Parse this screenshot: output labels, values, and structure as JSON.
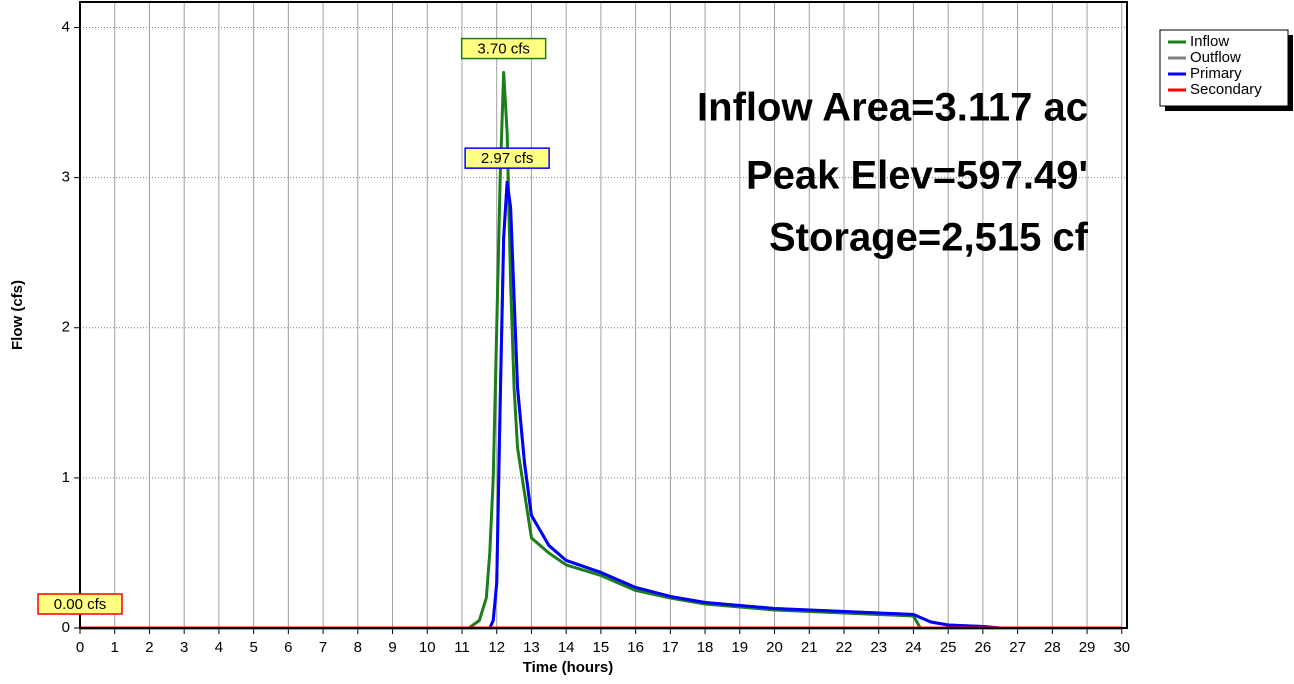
{
  "chart_data": {
    "type": "line",
    "xlabel": "Time  (hours)",
    "ylabel": "Flow  (cfs)",
    "xlim": [
      0,
      30.15
    ],
    "ylim": [
      0,
      4.17
    ],
    "xticks": [
      0,
      1,
      2,
      3,
      4,
      5,
      6,
      7,
      8,
      9,
      10,
      11,
      12,
      13,
      14,
      15,
      16,
      17,
      18,
      19,
      20,
      21,
      22,
      23,
      24,
      25,
      26,
      27,
      28,
      29,
      30
    ],
    "yticks": [
      0,
      1,
      2,
      3,
      4
    ],
    "grid": true,
    "legend": "top-right",
    "series": [
      {
        "name": "Inflow",
        "color": "#1a7f1a",
        "x": [
          0,
          11.2,
          11.5,
          11.7,
          11.8,
          11.9,
          12.0,
          12.1,
          12.2,
          12.3,
          12.4,
          12.5,
          12.6,
          12.8,
          13.0,
          13.5,
          14,
          15,
          16,
          17,
          18,
          19,
          20,
          21,
          22,
          23,
          24,
          24.2,
          30
        ],
        "values": [
          0,
          0,
          0.05,
          0.2,
          0.5,
          1.0,
          2.0,
          3.0,
          3.7,
          3.3,
          2.3,
          1.6,
          1.2,
          0.9,
          0.6,
          0.5,
          0.42,
          0.35,
          0.25,
          0.2,
          0.16,
          0.14,
          0.12,
          0.11,
          0.1,
          0.09,
          0.08,
          0,
          0
        ]
      },
      {
        "name": "Outflow",
        "color": "#808080",
        "x": [
          0,
          11.8,
          11.9,
          12.0,
          12.1,
          12.2,
          12.3,
          12.4,
          12.5,
          12.6,
          12.8,
          13.0,
          13.5,
          14,
          15,
          16,
          17,
          18,
          19,
          20,
          21,
          22,
          23,
          24,
          24.5,
          25,
          26,
          26.5,
          30
        ],
        "values": [
          0,
          0,
          0.05,
          0.3,
          1.5,
          2.6,
          2.97,
          2.8,
          2.2,
          1.6,
          1.1,
          0.75,
          0.55,
          0.45,
          0.37,
          0.27,
          0.21,
          0.17,
          0.15,
          0.13,
          0.12,
          0.11,
          0.1,
          0.09,
          0.04,
          0.02,
          0.01,
          0,
          0
        ]
      },
      {
        "name": "Primary",
        "color": "#0000ff",
        "x": [
          0,
          11.8,
          11.9,
          12.0,
          12.1,
          12.2,
          12.3,
          12.4,
          12.5,
          12.6,
          12.8,
          13.0,
          13.5,
          14,
          15,
          16,
          17,
          18,
          19,
          20,
          21,
          22,
          23,
          24,
          24.5,
          25,
          26,
          26.5,
          30
        ],
        "values": [
          0,
          0,
          0.05,
          0.3,
          1.5,
          2.6,
          2.97,
          2.8,
          2.2,
          1.6,
          1.1,
          0.75,
          0.55,
          0.45,
          0.37,
          0.27,
          0.21,
          0.17,
          0.15,
          0.13,
          0.12,
          0.11,
          0.1,
          0.09,
          0.04,
          0.02,
          0.01,
          0,
          0
        ]
      },
      {
        "name": "Secondary",
        "color": "#ff0000",
        "x": [
          0,
          30
        ],
        "values": [
          0,
          0
        ]
      }
    ],
    "annotations": [
      {
        "text": "3.70 cfs",
        "x": 12.2,
        "y": 3.7,
        "color": "#1a7f1a"
      },
      {
        "text": "2.97 cfs",
        "x": 12.3,
        "y": 2.97,
        "color": "#0000ff"
      },
      {
        "text": "0.00 cfs",
        "x": 0,
        "y": 0,
        "color": "#ff0000"
      }
    ],
    "info": [
      "Inflow Area=3.117 ac",
      "Peak Elev=597.49'",
      "Storage=2,515 cf"
    ]
  }
}
